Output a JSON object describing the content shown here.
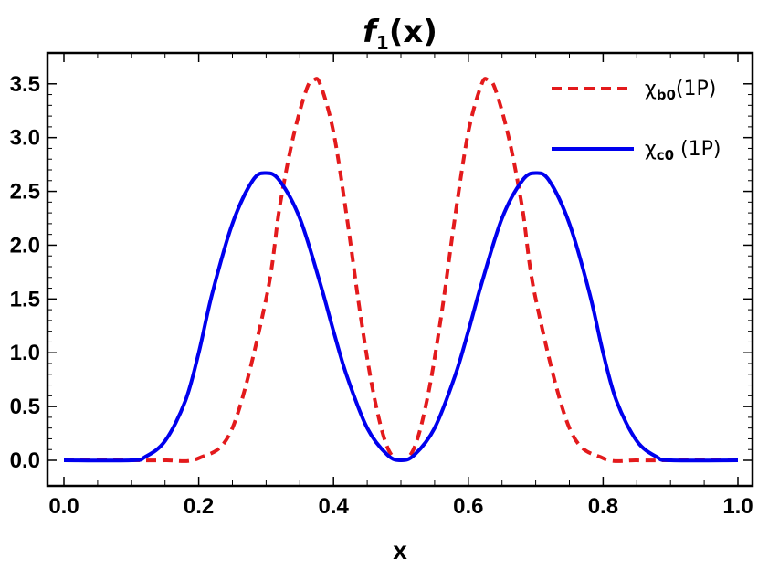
{
  "chart_data": {
    "type": "line",
    "title": {
      "main": "f",
      "sub": "1",
      "rest": "(x)"
    },
    "xlabel": "x",
    "ylabel": "",
    "xlim": [
      0.0,
      1.0
    ],
    "ylim": [
      0.0,
      3.6
    ],
    "x_ticks": [
      "0.0",
      "0.2",
      "0.4",
      "0.6",
      "0.8",
      "1.0"
    ],
    "y_ticks": [
      "0.0",
      "0.5",
      "1.0",
      "1.5",
      "2.0",
      "2.5",
      "3.0",
      "3.5"
    ],
    "grid": false,
    "legend_position": "top-right",
    "series": [
      {
        "name": "χb0(1P)",
        "legend": {
          "main": "χ",
          "sub": "b0",
          "rest": "(1P)"
        },
        "color": "#e31a1c",
        "dash": "dashed",
        "x": [
          0.0,
          0.1,
          0.15,
          0.2,
          0.25,
          0.3,
          0.32,
          0.34,
          0.36,
          0.37,
          0.38,
          0.4,
          0.42,
          0.44,
          0.46,
          0.48,
          0.5,
          0.52,
          0.54,
          0.56,
          0.58,
          0.6,
          0.62,
          0.63,
          0.64,
          0.66,
          0.68,
          0.7,
          0.75,
          0.8,
          0.85,
          0.9,
          1.0
        ],
        "y": [
          0.0,
          0.0,
          0.0,
          0.02,
          0.3,
          1.5,
          2.35,
          3.0,
          3.45,
          3.53,
          3.5,
          3.05,
          2.25,
          1.35,
          0.6,
          0.12,
          0.0,
          0.12,
          0.6,
          1.35,
          2.25,
          3.05,
          3.5,
          3.53,
          3.45,
          3.0,
          2.35,
          1.5,
          0.3,
          0.02,
          0.0,
          0.0,
          0.0
        ]
      },
      {
        "name": "χc0 (1P)",
        "legend": {
          "main": "χ",
          "sub": "c0",
          "rest": " (1P)"
        },
        "color": "#0000ee",
        "dash": "solid",
        "x": [
          0.0,
          0.1,
          0.12,
          0.15,
          0.18,
          0.2,
          0.22,
          0.25,
          0.28,
          0.3,
          0.32,
          0.35,
          0.38,
          0.4,
          0.42,
          0.45,
          0.48,
          0.5,
          0.52,
          0.55,
          0.58,
          0.6,
          0.62,
          0.65,
          0.68,
          0.7,
          0.72,
          0.75,
          0.78,
          0.8,
          0.82,
          0.85,
          0.88,
          0.9,
          1.0
        ],
        "y": [
          0.0,
          0.0,
          0.03,
          0.18,
          0.55,
          1.0,
          1.55,
          2.2,
          2.6,
          2.67,
          2.6,
          2.25,
          1.65,
          1.2,
          0.78,
          0.3,
          0.05,
          0.0,
          0.05,
          0.3,
          0.78,
          1.2,
          1.65,
          2.25,
          2.6,
          2.67,
          2.6,
          2.2,
          1.55,
          1.0,
          0.55,
          0.18,
          0.03,
          0.0,
          0.0
        ]
      }
    ]
  }
}
